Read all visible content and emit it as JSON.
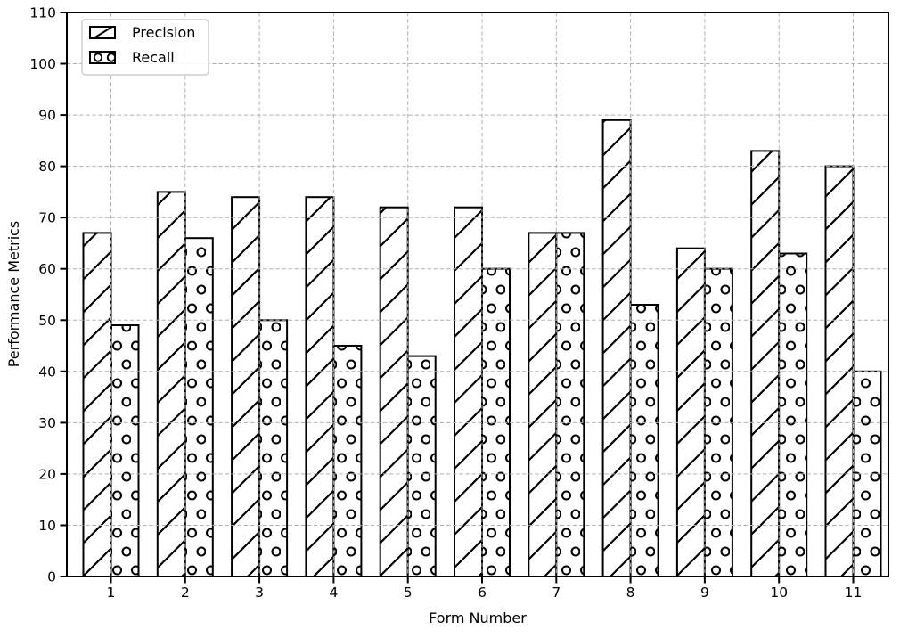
{
  "figure": {
    "background": "#ffffff",
    "text_color": "#000000",
    "grid_color": "#b0b0b0",
    "spine_color": "#000000",
    "legend": {
      "border_color": "#cccccc",
      "fill": "#ffffff",
      "position": "upper-left",
      "items": [
        {
          "label": "Precision",
          "swatch": "diagonal-hatch-swatch"
        },
        {
          "label": "Recall",
          "swatch": "circle-hatch-swatch"
        }
      ]
    }
  },
  "chart_data": {
    "type": "bar",
    "title": "",
    "xlabel": "Form Number",
    "ylabel": "Performance Metrics",
    "categories": [
      "1",
      "2",
      "3",
      "4",
      "5",
      "6",
      "7",
      "8",
      "9",
      "10",
      "11"
    ],
    "series": [
      {
        "name": "Precision",
        "hatch": "diagonal",
        "values": [
          67,
          75,
          74,
          74,
          72,
          72,
          67,
          89,
          64,
          83,
          80
        ]
      },
      {
        "name": "Recall",
        "hatch": "circles",
        "values": [
          49,
          66,
          50,
          45,
          43,
          60,
          67,
          53,
          60,
          63,
          40
        ]
      }
    ],
    "ylim": [
      0,
      110
    ],
    "ytick_step": 10,
    "yticks": [
      0,
      10,
      20,
      30,
      40,
      50,
      60,
      70,
      80,
      90,
      100,
      110
    ],
    "grid": "both-axes-dashed",
    "grid_over_bars": true,
    "legend_position": "upper-left",
    "bar_fill": "#ffffff",
    "bar_edge": "#000000"
  }
}
